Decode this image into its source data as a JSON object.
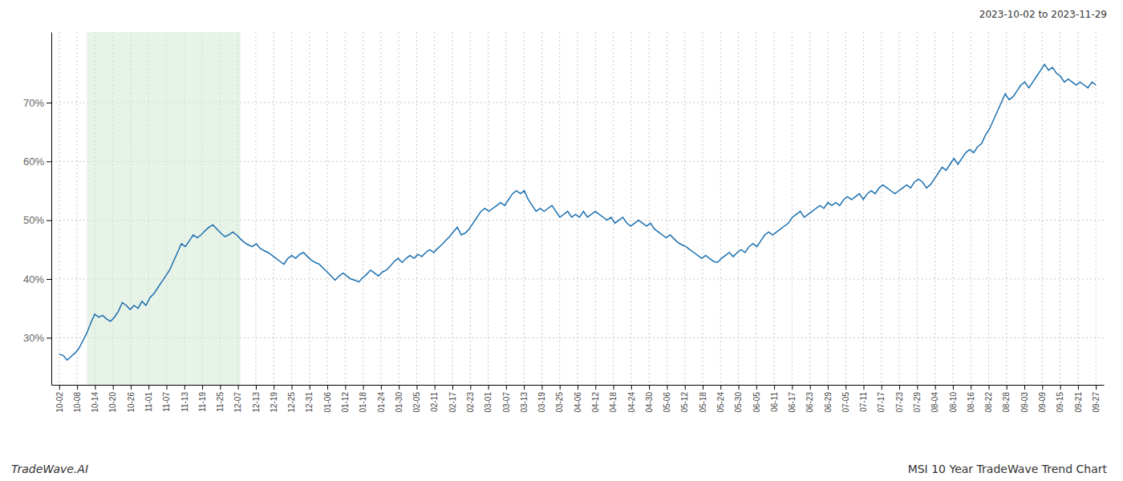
{
  "chart_data": {
    "type": "line",
    "title": "MSI 10 Year TradeWave Trend Chart",
    "subtitle": "2023-10-02 to 2023-11-29",
    "annotations": [
      "TradeWave.AI"
    ],
    "color": "#1a6faf",
    "grid": true,
    "span": {
      "x": [
        7,
        46
      ],
      "color": "#d6ead6"
    },
    "x": [
      0,
      1,
      2,
      3,
      4,
      5,
      6,
      7,
      8,
      9,
      10,
      11,
      12,
      13,
      14,
      15,
      16,
      17,
      18,
      19,
      20,
      21,
      22,
      23,
      24,
      25,
      26,
      27,
      28,
      29,
      30,
      31,
      32,
      33,
      34,
      35,
      36,
      37,
      38,
      39,
      40,
      41,
      42,
      43,
      44,
      45,
      46,
      47,
      48,
      49,
      50,
      51,
      52,
      53,
      54,
      55,
      56,
      57,
      58,
      59,
      60,
      61,
      62,
      63,
      64,
      65,
      66,
      67,
      68,
      69,
      70,
      71,
      72,
      73,
      74,
      75,
      76,
      77,
      78,
      79,
      80,
      81,
      82,
      83,
      84,
      85,
      86,
      87,
      88,
      89,
      90,
      91,
      92,
      93,
      94,
      95,
      96,
      97,
      98,
      99,
      100,
      101,
      102,
      103,
      104,
      105,
      106,
      107,
      108,
      109,
      110,
      111,
      112,
      113,
      114,
      115,
      116,
      117,
      118,
      119,
      120,
      121,
      122,
      123,
      124,
      125,
      126,
      127,
      128,
      129,
      130,
      131,
      132,
      133,
      134,
      135,
      136,
      137,
      138,
      139,
      140,
      141,
      142,
      143,
      144,
      145,
      146,
      147,
      148,
      149,
      150,
      151,
      152,
      153,
      154,
      155,
      156,
      157,
      158,
      159,
      160,
      161,
      162,
      163,
      164,
      165,
      166,
      167,
      168,
      169,
      170,
      171,
      172,
      173,
      174,
      175,
      176,
      177,
      178,
      179,
      180,
      181,
      182,
      183,
      184,
      185,
      186,
      187,
      188,
      189,
      190,
      191,
      192,
      193,
      194,
      195,
      196,
      197,
      198,
      199,
      200,
      201,
      202,
      203,
      204,
      205,
      206,
      207,
      208,
      209,
      210,
      211,
      212,
      213,
      214,
      215,
      216,
      217,
      218,
      219,
      220,
      221,
      222,
      223,
      224,
      225,
      226,
      227,
      228,
      229,
      230,
      231,
      232,
      233,
      234,
      235,
      236,
      237,
      238,
      239,
      240,
      241,
      242,
      243,
      244,
      245,
      246,
      247,
      248,
      249,
      250,
      251,
      252,
      253,
      254,
      255,
      256,
      257,
      258,
      259,
      260,
      261,
      262,
      263
    ],
    "values": [
      27.2,
      27.0,
      26.2,
      26.8,
      27.4,
      28.2,
      29.5,
      30.8,
      32.5,
      34.0,
      33.5,
      33.8,
      33.2,
      32.8,
      33.5,
      34.5,
      36.0,
      35.5,
      34.8,
      35.5,
      35.0,
      36.2,
      35.5,
      36.8,
      37.5,
      38.5,
      39.5,
      40.5,
      41.5,
      43.0,
      44.5,
      46.0,
      45.5,
      46.5,
      47.5,
      47.0,
      47.5,
      48.2,
      48.8,
      49.2,
      48.5,
      47.8,
      47.2,
      47.5,
      48.0,
      47.5,
      46.8,
      46.2,
      45.8,
      45.5,
      46.0,
      45.2,
      44.8,
      44.5,
      44.0,
      43.5,
      43.0,
      42.5,
      43.5,
      44.0,
      43.5,
      44.2,
      44.5,
      43.8,
      43.2,
      42.8,
      42.5,
      41.8,
      41.2,
      40.5,
      39.8,
      40.5,
      41.0,
      40.5,
      40.0,
      39.8,
      39.5,
      40.2,
      40.8,
      41.5,
      41.0,
      40.5,
      41.2,
      41.5,
      42.2,
      43.0,
      43.5,
      42.8,
      43.5,
      44.0,
      43.5,
      44.2,
      43.8,
      44.5,
      45.0,
      44.5,
      45.2,
      45.8,
      46.5,
      47.2,
      48.0,
      48.8,
      47.5,
      47.8,
      48.5,
      49.5,
      50.5,
      51.5,
      52.0,
      51.5,
      52.0,
      52.5,
      53.0,
      52.5,
      53.5,
      54.5,
      55.0,
      54.5,
      55.0,
      53.5,
      52.5,
      51.5,
      52.0,
      51.5,
      52.0,
      52.5,
      51.5,
      50.5,
      51.0,
      51.5,
      50.5,
      51.0,
      50.5,
      51.5,
      50.5,
      51.0,
      51.5,
      51.0,
      50.5,
      50.0,
      50.5,
      49.5,
      50.0,
      50.5,
      49.5,
      49.0,
      49.5,
      50.0,
      49.5,
      49.0,
      49.5,
      48.5,
      48.0,
      47.5,
      47.0,
      47.5,
      46.8,
      46.2,
      45.8,
      45.5,
      45.0,
      44.5,
      44.0,
      43.5,
      44.0,
      43.5,
      43.0,
      42.8,
      43.5,
      44.0,
      44.5,
      43.8,
      44.5,
      45.0,
      44.5,
      45.5,
      46.0,
      45.5,
      46.5,
      47.5,
      48.0,
      47.5,
      48.0,
      48.5,
      49.0,
      49.5,
      50.5,
      51.0,
      51.5,
      50.5,
      51.0,
      51.5,
      52.0,
      52.5,
      52.0,
      53.0,
      52.5,
      53.0,
      52.5,
      53.5,
      54.0,
      53.5,
      54.0,
      54.5,
      53.5,
      54.5,
      55.0,
      54.5,
      55.5,
      56.0,
      55.5,
      55.0,
      54.5,
      55.0,
      55.5,
      56.0,
      55.5,
      56.5,
      57.0,
      56.5,
      55.5,
      56.0,
      57.0,
      58.0,
      59.0,
      58.5,
      59.5,
      60.5,
      59.5,
      60.5,
      61.5,
      62.0,
      61.5,
      62.5,
      63.0,
      64.5,
      65.5,
      67.0,
      68.5,
      70.0,
      71.5,
      70.5,
      71.0,
      72.0,
      73.0,
      73.5,
      72.5,
      73.5,
      74.5,
      75.5,
      76.5,
      75.5,
      76.0,
      75.0,
      74.5,
      73.5,
      74.0,
      73.5,
      73.0,
      73.5,
      73.0,
      72.5,
      73.5,
      73.0
    ],
    "xlim": [
      -2,
      265
    ],
    "xticks": [
      {
        "value": 0,
        "label": "10-02"
      },
      {
        "value": 4.53448275862069,
        "label": "10-08"
      },
      {
        "value": 9.06896551724138,
        "label": "10-14"
      },
      {
        "value": 13.60344827586207,
        "label": "10-20"
      },
      {
        "value": 18.13793103448276,
        "label": "10-26"
      },
      {
        "value": 22.67241379310345,
        "label": "11-01"
      },
      {
        "value": 27.20689655172414,
        "label": "11-07"
      },
      {
        "value": 31.74137931034483,
        "label": "11-13"
      },
      {
        "value": 36.27586206896552,
        "label": "11-19"
      },
      {
        "value": 40.81034482758621,
        "label": "11-25"
      },
      {
        "value": 45.3448275862069,
        "label": "12-07"
      },
      {
        "value": 49.87931034482759,
        "label": "12-13"
      },
      {
        "value": 54.41379310344828,
        "label": "12-19"
      },
      {
        "value": 58.94827586206897,
        "label": "12-25"
      },
      {
        "value": 63.48275862068966,
        "label": "12-31"
      },
      {
        "value": 68.01724137931035,
        "label": "01-06"
      },
      {
        "value": 72.55172413793103,
        "label": "01-12"
      },
      {
        "value": 77.08620689655172,
        "label": "01-18"
      },
      {
        "value": 81.62068965517241,
        "label": "01-24"
      },
      {
        "value": 86.1551724137931,
        "label": "01-30"
      },
      {
        "value": 90.6896551724138,
        "label": "02-05"
      },
      {
        "value": 95.22413793103448,
        "label": "02-11"
      },
      {
        "value": 99.75862068965517,
        "label": "02-17"
      },
      {
        "value": 104.29310344827586,
        "label": "02-23"
      },
      {
        "value": 108.82758620689656,
        "label": "03-01"
      },
      {
        "value": 113.36206896551724,
        "label": "03-07"
      },
      {
        "value": 117.89655172413794,
        "label": "03-13"
      },
      {
        "value": 122.43103448275862,
        "label": "03-19"
      },
      {
        "value": 126.96551724137932,
        "label": "03-25"
      },
      {
        "value": 131.5,
        "label": "04-06"
      },
      {
        "value": 136.03448275862067,
        "label": "04-12"
      },
      {
        "value": 140.56896551724137,
        "label": "04-18"
      },
      {
        "value": 145.10344827586206,
        "label": "04-24"
      },
      {
        "value": 149.63793103448276,
        "label": "04-30"
      },
      {
        "value": 154.17241379310346,
        "label": "05-06"
      },
      {
        "value": 158.70689655172413,
        "label": "05-12"
      },
      {
        "value": 163.24137931034483,
        "label": "05-18"
      },
      {
        "value": 167.77586206896552,
        "label": "05-24"
      },
      {
        "value": 172.31034482758622,
        "label": "05-30"
      },
      {
        "value": 176.8448275862069,
        "label": "06-05"
      },
      {
        "value": 181.3793103448276,
        "label": "06-11"
      },
      {
        "value": 185.9137931034483,
        "label": "06-17"
      },
      {
        "value": 190.44827586206895,
        "label": "06-23"
      },
      {
        "value": 194.98275862068965,
        "label": "06-29"
      },
      {
        "value": 199.51724137931035,
        "label": "07-05"
      },
      {
        "value": 204.05172413793105,
        "label": "07-11"
      },
      {
        "value": 208.58620689655172,
        "label": "07-17"
      },
      {
        "value": 213.1206896551724,
        "label": "07-23"
      },
      {
        "value": 217.6551724137931,
        "label": "07-29"
      },
      {
        "value": 222.1896551724138,
        "label": "08-04"
      },
      {
        "value": 226.72413793103448,
        "label": "08-10"
      },
      {
        "value": 231.25862068965517,
        "label": "08-16"
      },
      {
        "value": 235.79310344827587,
        "label": "08-22"
      },
      {
        "value": 240.32758620689654,
        "label": "08-28"
      },
      {
        "value": 244.86206896551724,
        "label": "09-03"
      },
      {
        "value": 249.39655172413794,
        "label": "09-09"
      },
      {
        "value": 253.93103448275863,
        "label": "09-15"
      },
      {
        "value": 258.4655172413793,
        "label": "09-21"
      },
      {
        "value": 263,
        "label": "09-27"
      }
    ],
    "ylim": [
      22,
      82
    ],
    "yticks": [
      {
        "value": 30,
        "label": "30%"
      },
      {
        "value": 40,
        "label": "40%"
      },
      {
        "value": 50,
        "label": "50%"
      },
      {
        "value": 60,
        "label": "60%"
      },
      {
        "value": 70,
        "label": "70%"
      }
    ]
  }
}
